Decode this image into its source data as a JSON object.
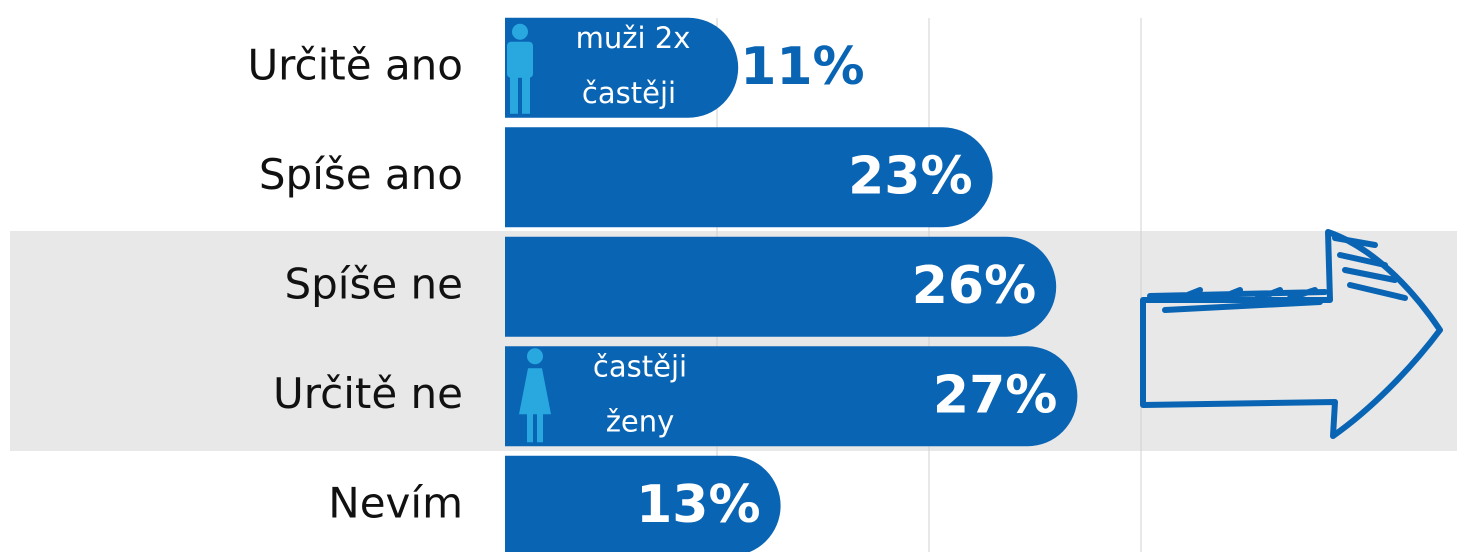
{
  "chart_data": {
    "type": "barh",
    "categories": [
      "Určitě ano",
      "Spíše ano",
      "Spíše ne",
      "Určitě ne",
      "Nevím"
    ],
    "values": [
      11,
      23,
      26,
      27,
      13
    ],
    "value_labels": [
      "11%",
      "23%",
      "26%",
      "27%",
      "13%"
    ],
    "color": "#0a64b4",
    "xlim": [
      0,
      45
    ],
    "xticks": [
      10,
      20,
      30
    ],
    "grid": true,
    "annotations": [
      {
        "category": 0,
        "lines": [
          "muži 2x",
          "častěji"
        ]
      },
      {
        "category": 3,
        "lines": [
          "častěji",
          "ženy"
        ]
      }
    ]
  }
}
